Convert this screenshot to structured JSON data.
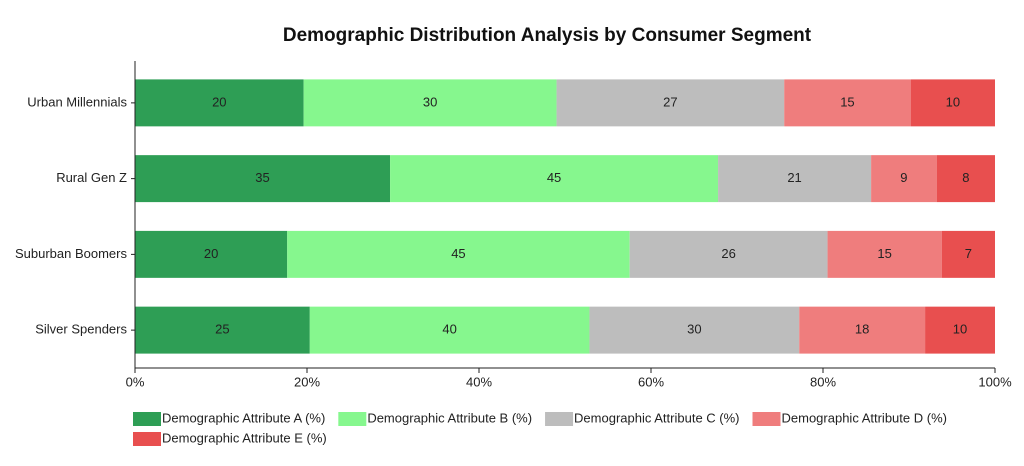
{
  "chart_data": {
    "type": "bar",
    "orientation": "horizontal",
    "stacking": "percent",
    "title": "Demographic Distribution Analysis by Consumer Segment",
    "categories": [
      "Urban Millennials",
      "Rural Gen Z",
      "Suburban Boomers",
      "Silver Spenders"
    ],
    "series": [
      {
        "name": "Demographic Attribute A (%)",
        "color": "#2e9e55",
        "values": [
          20,
          35,
          20,
          25
        ]
      },
      {
        "name": "Demographic Attribute B (%)",
        "color": "#86f78e",
        "values": [
          30,
          45,
          45,
          40
        ]
      },
      {
        "name": "Demographic Attribute C (%)",
        "color": "#bdbdbd",
        "values": [
          27,
          21,
          26,
          30
        ]
      },
      {
        "name": "Demographic Attribute D (%)",
        "color": "#ef7d7d",
        "values": [
          15,
          9,
          15,
          18
        ]
      },
      {
        "name": "Demographic Attribute E (%)",
        "color": "#e84f4f",
        "values": [
          10,
          8,
          7,
          10
        ]
      }
    ],
    "xlim": [
      0,
      100
    ],
    "xticks": [
      {
        "value": 0,
        "label": "0%"
      },
      {
        "value": 20,
        "label": "20%"
      },
      {
        "value": 40,
        "label": "40%"
      },
      {
        "value": 60,
        "label": "60%"
      },
      {
        "value": 80,
        "label": "80%"
      },
      {
        "value": 100,
        "label": "100%"
      }
    ],
    "legend": "bottom"
  }
}
